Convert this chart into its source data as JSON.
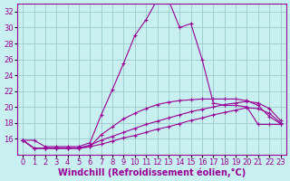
{
  "title": "",
  "xlabel": "Windchill (Refroidissement éolien,°C)",
  "bg_color": "#c8f0f0",
  "grid_color": "#99cccc",
  "line_color": "#990099",
  "xlim": [
    -0.5,
    23.5
  ],
  "ylim": [
    14,
    33
  ],
  "xticks": [
    0,
    1,
    2,
    3,
    4,
    5,
    6,
    7,
    8,
    9,
    10,
    11,
    12,
    13,
    14,
    15,
    16,
    17,
    18,
    19,
    20,
    21,
    22,
    23
  ],
  "yticks": [
    16,
    18,
    20,
    22,
    24,
    26,
    28,
    30,
    32
  ],
  "series1_x": [
    0,
    1,
    2,
    3,
    4,
    5,
    6,
    7,
    8,
    9,
    10,
    11,
    12,
    13,
    14,
    15,
    16,
    17,
    18,
    19,
    20,
    21,
    22,
    23
  ],
  "series1_y": [
    15.8,
    15.8,
    15.0,
    15.0,
    15.0,
    15.0,
    15.5,
    19.0,
    22.2,
    25.5,
    29.0,
    31.0,
    33.5,
    33.5,
    30.0,
    30.5,
    26.0,
    20.5,
    20.2,
    20.2,
    20.0,
    17.8,
    17.8,
    17.8
  ],
  "series2_x": [
    0,
    1,
    2,
    3,
    4,
    5,
    6,
    7,
    8,
    9,
    10,
    11,
    12,
    13,
    14,
    15,
    16,
    17,
    18,
    19,
    20,
    21,
    22,
    23
  ],
  "series2_y": [
    15.8,
    14.8,
    14.8,
    14.8,
    14.8,
    14.8,
    15.0,
    16.5,
    17.5,
    18.5,
    19.2,
    19.8,
    20.3,
    20.6,
    20.8,
    20.9,
    21.0,
    21.0,
    21.0,
    21.0,
    20.8,
    20.2,
    18.8,
    17.9
  ],
  "series3_x": [
    0,
    1,
    2,
    3,
    4,
    5,
    6,
    7,
    8,
    9,
    10,
    11,
    12,
    13,
    14,
    15,
    16,
    17,
    18,
    19,
    20,
    21,
    22,
    23
  ],
  "series3_y": [
    15.8,
    14.8,
    14.8,
    14.8,
    14.8,
    14.8,
    15.2,
    15.8,
    16.3,
    16.8,
    17.3,
    17.8,
    18.2,
    18.6,
    19.0,
    19.4,
    19.7,
    20.0,
    20.3,
    20.5,
    20.7,
    20.5,
    19.8,
    18.3
  ],
  "series4_x": [
    0,
    1,
    2,
    3,
    4,
    5,
    6,
    7,
    8,
    9,
    10,
    11,
    12,
    13,
    14,
    15,
    16,
    17,
    18,
    19,
    20,
    21,
    22,
    23
  ],
  "series4_y": [
    15.8,
    14.8,
    14.8,
    14.8,
    14.8,
    14.8,
    15.0,
    15.3,
    15.7,
    16.1,
    16.4,
    16.8,
    17.2,
    17.5,
    17.9,
    18.3,
    18.6,
    19.0,
    19.3,
    19.6,
    19.9,
    19.8,
    19.2,
    18.0
  ],
  "tick_fontsize": 6,
  "label_fontsize": 7
}
